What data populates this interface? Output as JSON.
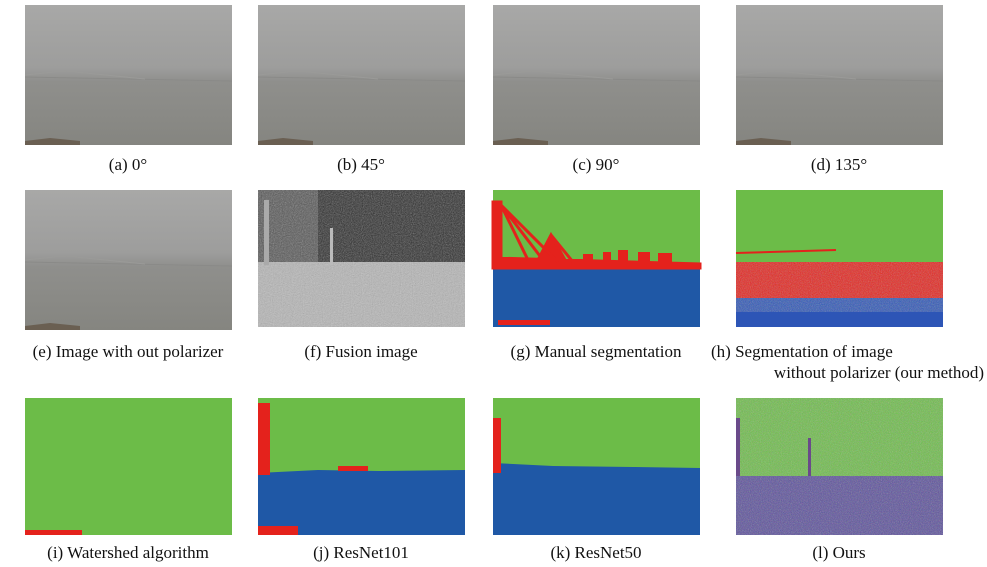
{
  "panels": [
    {
      "caption": [
        "(a) 0°"
      ]
    },
    {
      "caption": [
        "(b) 45°"
      ]
    },
    {
      "caption": [
        "(c) 90°"
      ]
    },
    {
      "caption": [
        "(d) 135°"
      ]
    },
    {
      "caption": [
        "(e) Image with out polarizer"
      ]
    },
    {
      "caption": [
        "(f) Fusion image"
      ]
    },
    {
      "caption": [
        "(g) Manual segmentation"
      ]
    },
    {
      "caption": [
        "(h) Segmentation of image",
        "without polarizer (our method)"
      ]
    },
    {
      "caption": [
        "(i) Watershed algorithm"
      ]
    },
    {
      "caption": [
        "(j) ResNet101"
      ]
    },
    {
      "caption": [
        "(k) ResNet50"
      ]
    },
    {
      "caption": [
        "(l) Ours"
      ]
    }
  ]
}
